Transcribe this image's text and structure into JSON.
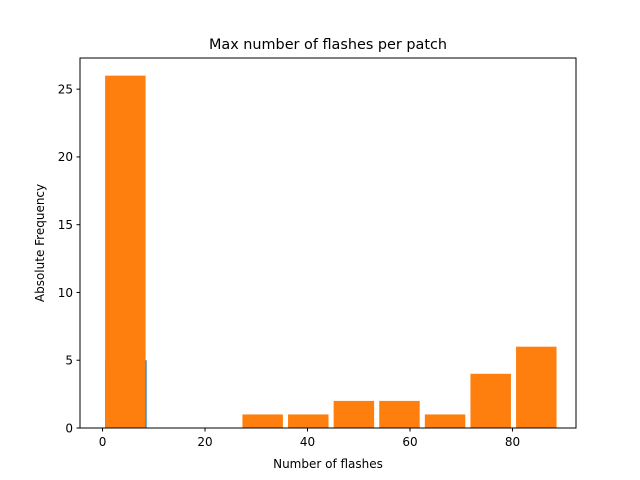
{
  "chart_data": {
    "type": "bar",
    "title": "Max number of flashes per patch",
    "xlabel": "Number of flashes",
    "ylabel": "Absolute Frequency",
    "xlim": [
      -4.4,
      92.4
    ],
    "ylim": [
      0,
      27.3
    ],
    "xticks": [
      0,
      20,
      40,
      60,
      80
    ],
    "yticks": [
      0,
      5,
      10,
      15,
      20,
      25
    ],
    "grid": false,
    "series": [
      {
        "color": "#1f77b4",
        "bars": [
          {
            "x0": 0.5,
            "x1": 8.6,
            "value": 5
          }
        ]
      },
      {
        "color": "#ff7f0e",
        "bars": [
          {
            "x0": 0.5,
            "x1": 8.4,
            "value": 26
          },
          {
            "x0": 27.3,
            "x1": 35.2,
            "value": 1
          },
          {
            "x0": 36.2,
            "x1": 44.1,
            "value": 1
          },
          {
            "x0": 45.1,
            "x1": 53.0,
            "value": 2
          },
          {
            "x0": 54.0,
            "x1": 61.9,
            "value": 2
          },
          {
            "x0": 62.9,
            "x1": 70.8,
            "value": 1
          },
          {
            "x0": 71.8,
            "x1": 79.7,
            "value": 4
          },
          {
            "x0": 80.7,
            "x1": 88.6,
            "value": 6
          }
        ]
      }
    ]
  }
}
